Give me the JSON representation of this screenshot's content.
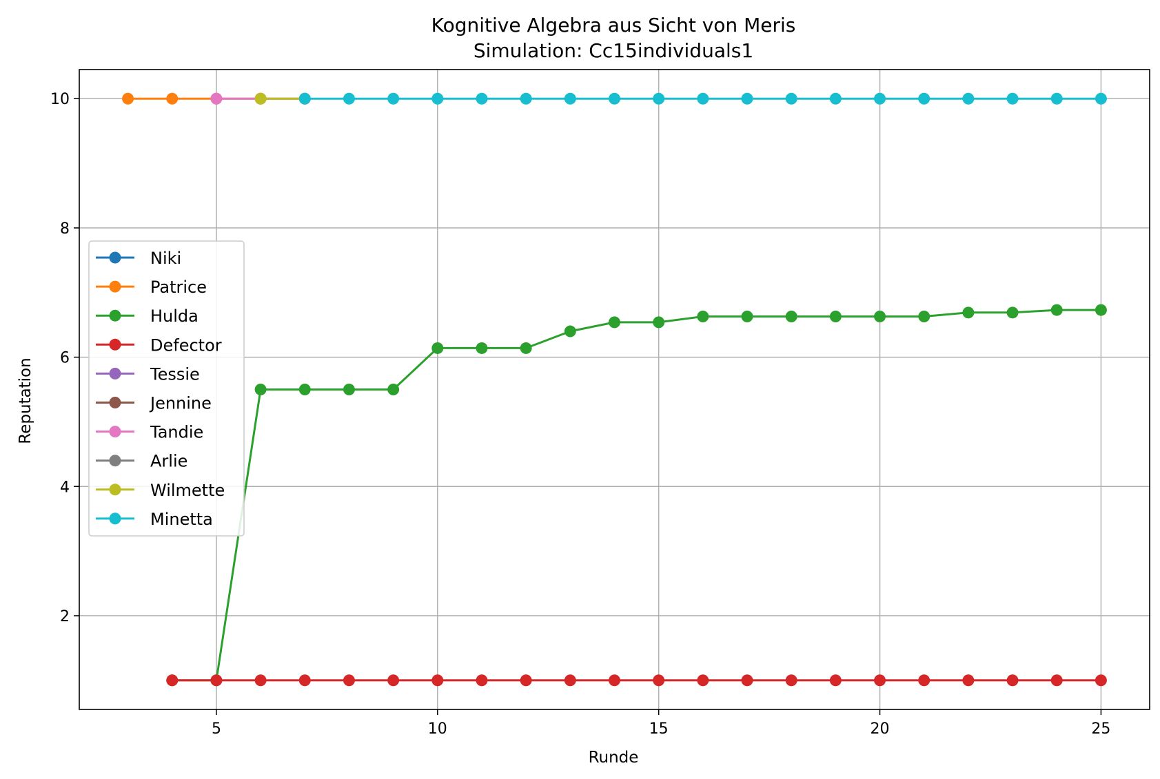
{
  "chart_data": {
    "type": "line",
    "title": "Kognitive Algebra aus Sicht von Meris",
    "subtitle": "Simulation: Cc15individuals1",
    "xlabel": "Runde",
    "ylabel": "Reputation",
    "xlim": [
      1.9,
      26.1
    ],
    "ylim": [
      0.55,
      10.45
    ],
    "xticks": [
      5,
      10,
      15,
      20,
      25
    ],
    "yticks": [
      2,
      4,
      6,
      8,
      10
    ],
    "grid": true,
    "legend_position": "center-left",
    "series": [
      {
        "name": "Niki",
        "color": "#1f77b4",
        "x": [],
        "y": []
      },
      {
        "name": "Patrice",
        "color": "#ff7f0e",
        "x": [
          3,
          4,
          5,
          6,
          7
        ],
        "y": [
          10,
          10,
          10,
          10,
          10
        ]
      },
      {
        "name": "Hulda",
        "color": "#2ca02c",
        "x": [
          4,
          5,
          6,
          7,
          8,
          9,
          10,
          11,
          12,
          13,
          14,
          15,
          16,
          17,
          18,
          19,
          20,
          21,
          22,
          23,
          24,
          25
        ],
        "y": [
          1.0,
          1.0,
          5.5,
          5.5,
          5.5,
          5.5,
          6.14,
          6.14,
          6.14,
          6.4,
          6.54,
          6.54,
          6.63,
          6.63,
          6.63,
          6.63,
          6.63,
          6.63,
          6.69,
          6.69,
          6.73,
          6.73
        ]
      },
      {
        "name": "Defector",
        "color": "#d62728",
        "x": [
          4,
          5,
          6,
          7,
          8,
          9,
          10,
          11,
          12,
          13,
          14,
          15,
          16,
          17,
          18,
          19,
          20,
          21,
          22,
          23,
          24,
          25
        ],
        "y": [
          1,
          1,
          1,
          1,
          1,
          1,
          1,
          1,
          1,
          1,
          1,
          1,
          1,
          1,
          1,
          1,
          1,
          1,
          1,
          1,
          1,
          1
        ]
      },
      {
        "name": "Tessie",
        "color": "#9467bd",
        "x": [],
        "y": []
      },
      {
        "name": "Jennine",
        "color": "#8c564b",
        "x": [],
        "y": []
      },
      {
        "name": "Tandie",
        "color": "#e377c2",
        "x": [
          5,
          6,
          7
        ],
        "y": [
          10,
          10,
          10
        ]
      },
      {
        "name": "Arlie",
        "color": "#7f7f7f",
        "x": [],
        "y": []
      },
      {
        "name": "Wilmette",
        "color": "#bcbd22",
        "x": [
          6,
          7
        ],
        "y": [
          10,
          10
        ]
      },
      {
        "name": "Minetta",
        "color": "#17becf",
        "x": [
          7,
          8,
          9,
          10,
          11,
          12,
          13,
          14,
          15,
          16,
          17,
          18,
          19,
          20,
          21,
          22,
          23,
          24,
          25
        ],
        "y": [
          10,
          10,
          10,
          10,
          10,
          10,
          10,
          10,
          10,
          10,
          10,
          10,
          10,
          10,
          10,
          10,
          10,
          10,
          10
        ]
      }
    ]
  }
}
